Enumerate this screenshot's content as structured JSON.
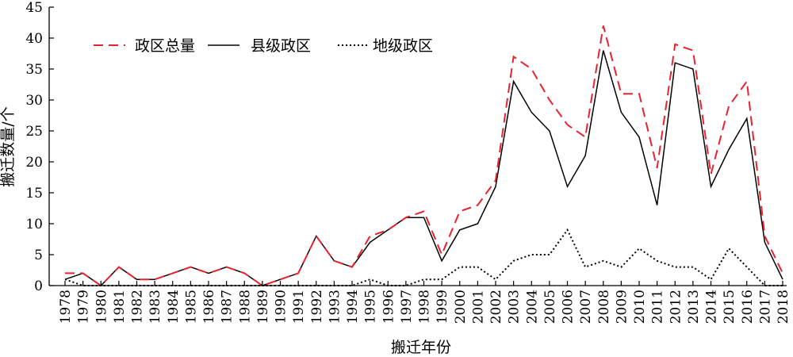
{
  "chart_data": {
    "type": "line",
    "title": "",
    "xlabel": "搬迁年份",
    "ylabel": "搬迁数量/个",
    "ylim": [
      0,
      45
    ],
    "yticks": [
      0,
      5,
      10,
      15,
      20,
      25,
      30,
      35,
      40,
      45
    ],
    "grid": false,
    "legend_position": "top-left",
    "categories": [
      "1978",
      "1979",
      "1980",
      "1981",
      "1982",
      "1983",
      "1984",
      "1985",
      "1986",
      "1987",
      "1988",
      "1989",
      "1990",
      "1991",
      "1992",
      "1993",
      "1994",
      "1995",
      "1996",
      "1997",
      "1998",
      "1999",
      "2000",
      "2001",
      "2002",
      "2003",
      "2004",
      "2005",
      "2006",
      "2007",
      "2008",
      "2009",
      "2010",
      "2011",
      "2012",
      "2013",
      "2014",
      "2015",
      "2016",
      "2017",
      "2018"
    ],
    "series": [
      {
        "name": "政区总量",
        "color": "#e8232f",
        "style": "dashed",
        "values": [
          2,
          2,
          0,
          3,
          1,
          1,
          2,
          3,
          2,
          3,
          2,
          0,
          1,
          2,
          8,
          4,
          3,
          8,
          9,
          11,
          12,
          5,
          12,
          13,
          17,
          37,
          35,
          30,
          26,
          24,
          42,
          31,
          31,
          19,
          39,
          38,
          18,
          29,
          33,
          8,
          2
        ]
      },
      {
        "name": "县级政区",
        "color": "#000000",
        "style": "solid",
        "values": [
          1,
          2,
          0,
          3,
          1,
          1,
          2,
          3,
          2,
          3,
          2,
          0,
          1,
          2,
          8,
          4,
          3,
          7,
          9,
          11,
          11,
          4,
          9,
          10,
          16,
          33,
          28,
          25,
          16,
          21,
          38,
          28,
          24,
          13,
          36,
          35,
          16,
          22,
          27,
          7,
          1
        ]
      },
      {
        "name": "地级政区",
        "color": "#000000",
        "style": "dotted",
        "values": [
          1,
          0,
          0,
          0,
          0,
          0,
          0,
          0,
          0,
          0,
          0,
          0,
          0,
          0,
          0,
          0,
          0,
          1,
          0,
          0,
          1,
          1,
          3,
          3,
          1,
          4,
          5,
          5,
          9,
          3,
          4,
          3,
          6,
          4,
          3,
          3,
          1,
          6,
          3,
          0,
          0
        ]
      }
    ]
  }
}
